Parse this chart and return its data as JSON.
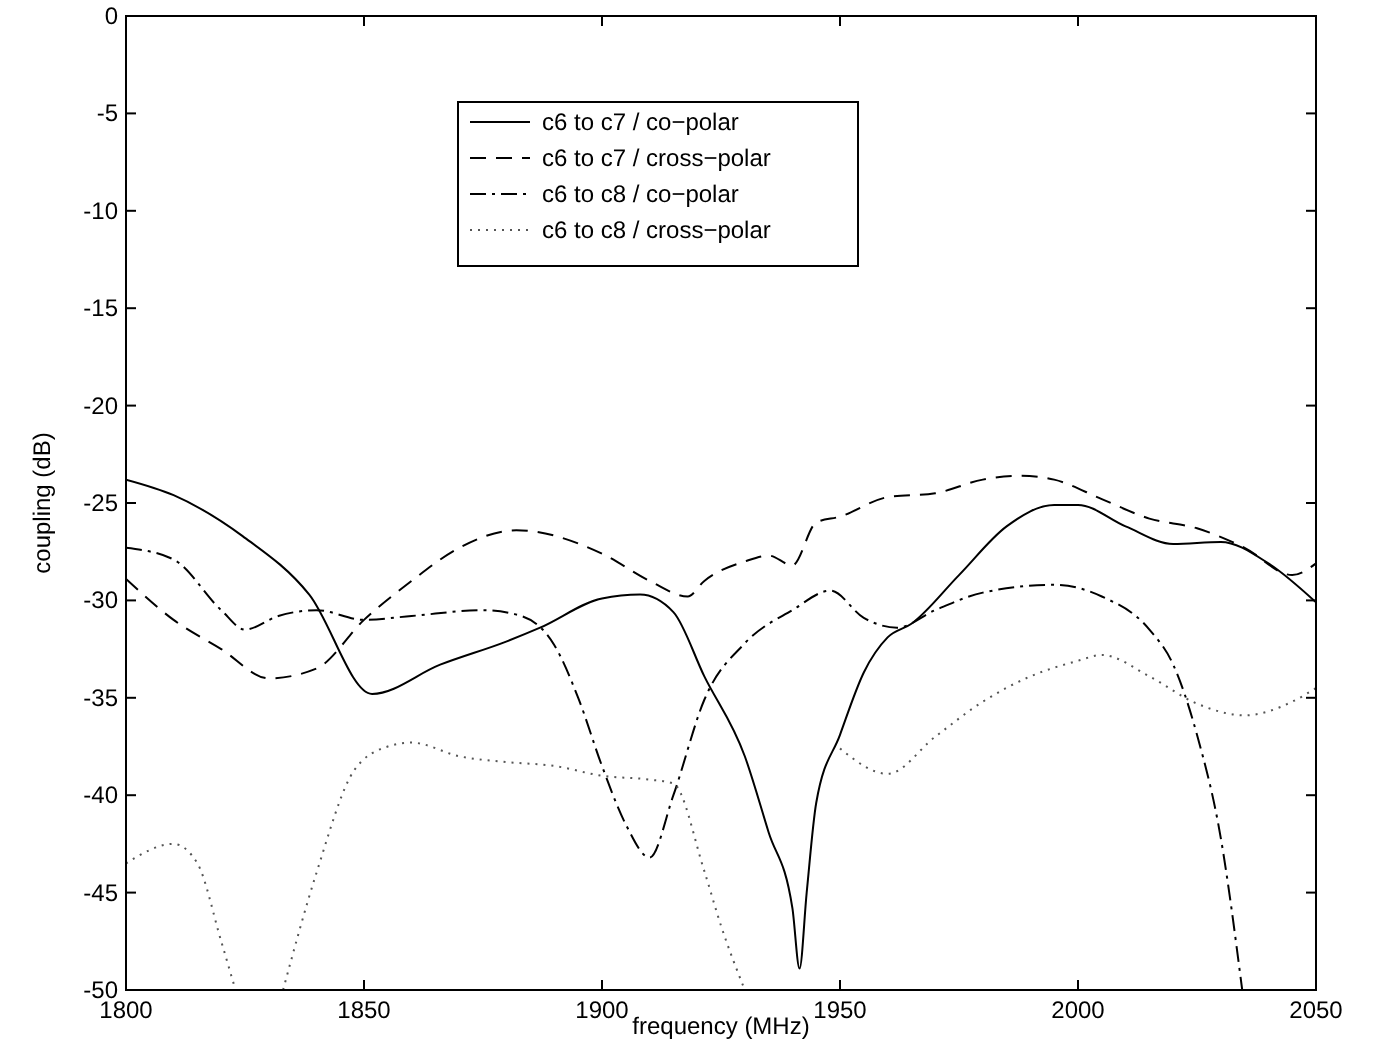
{
  "chart_data": {
    "type": "line",
    "xlabel": "frequency (MHz)",
    "ylabel": "coupling (dB)",
    "xlim": [
      1800,
      2050
    ],
    "xticks": [
      1800,
      1850,
      1900,
      1950,
      2000,
      2050
    ],
    "ylim": [
      -50,
      0
    ],
    "yticks": [
      -50,
      -45,
      -40,
      -35,
      -30,
      -25,
      -20,
      -15,
      -10,
      -5,
      0
    ],
    "legend": "top",
    "grid": false,
    "series": [
      {
        "name": "c6 to c7 / co−polar",
        "color": "#000000",
        "line_style": "solid",
        "x": [
          1800,
          1810,
          1824.5,
          1838.5,
          1851.7,
          1866,
          1880,
          1887,
          1900,
          1908,
          1915,
          1921.5,
          1930,
          1935,
          1940,
          1941.5,
          1943,
          1945,
          1950,
          1955,
          1960,
          1965,
          1975,
          1985,
          1995,
          2000,
          2010,
          2020,
          2030,
          2040,
          2050
        ],
        "values": [
          -23.8,
          -24.6,
          -26.7,
          -29.7,
          -34.8,
          -33.3,
          -32.1,
          -31.4,
          -29.9,
          -29.7,
          -30.6,
          -33.9,
          -38,
          -41.9,
          -45.8,
          -48.9,
          -45,
          -40.4,
          -36.9,
          -33.7,
          -31.9,
          -31.2,
          -28.7,
          -26.2,
          -25.1,
          -25.1,
          -26.2,
          -27.1,
          -27,
          -28.1,
          -30.1
        ]
      },
      {
        "name": "c6 to c7 / cross−polar",
        "color": "#000000",
        "line_style": "dashed",
        "x": [
          1800,
          1810,
          1820,
          1830,
          1840,
          1850,
          1860,
          1870,
          1882,
          1900,
          1910,
          1918,
          1921.5,
          1930,
          1935,
          1940,
          1945,
          1950,
          1960,
          1970,
          1980,
          1988,
          1995,
          2005,
          2015,
          2025,
          2035,
          2045,
          2050
        ],
        "values": [
          -28.9,
          -31,
          -32.5,
          -34,
          -33.5,
          -31,
          -29,
          -27.3,
          -26.4,
          -27.6,
          -29,
          -29.8,
          -29,
          -28,
          -27.7,
          -28.2,
          -26,
          -25.7,
          -24.7,
          -24.5,
          -23.8,
          -23.6,
          -23.8,
          -24.8,
          -25.8,
          -26.3,
          -27.3,
          -28.7,
          -28.1
        ]
      },
      {
        "name": "c6 to c8 / co−polar",
        "color": "#000000",
        "line_style": "dashdot",
        "x": [
          1800,
          1810,
          1820,
          1825,
          1832,
          1840,
          1850,
          1860,
          1875,
          1883,
          1890,
          1895,
          1900,
          1905,
          1910,
          1915,
          1921.5,
          1930,
          1940,
          1948,
          1955,
          1962,
          1970,
          1980,
          1995,
          2005,
          2015,
          2020,
          2025,
          2030,
          2034.5
        ],
        "values": [
          -27.3,
          -27.9,
          -30.5,
          -31.5,
          -30.8,
          -30.5,
          -31,
          -30.8,
          -30.5,
          -30.8,
          -32.3,
          -35,
          -38.5,
          -41.5,
          -43.2,
          -40,
          -35.1,
          -32.2,
          -30.5,
          -29.5,
          -30.9,
          -31.4,
          -30.5,
          -29.6,
          -29.2,
          -29.8,
          -31.5,
          -33.3,
          -36.9,
          -42.2,
          -50
        ]
      },
      {
        "name": "c6 to c8 / cross−polar",
        "color": "#555555",
        "line_style": "dotted",
        "x": [
          1800,
          1810,
          1815,
          1820,
          1823,
          1828,
          1833,
          1840,
          1848,
          1855,
          1860,
          1870,
          1880,
          1890,
          1900,
          1910,
          1915,
          1921.5,
          1925,
          1930,
          1940,
          1950,
          1960,
          1970,
          1980,
          1990,
          2000,
          2005,
          2015,
          2025,
          2035,
          2045,
          2050
        ],
        "values": [
          -43.5,
          -42.5,
          -43.5,
          -47.5,
          -50,
          null,
          -50,
          -44,
          -38.7,
          -37.5,
          -37.3,
          -38,
          -38.3,
          -38.5,
          -39,
          -39.2,
          -39.4,
          -43.9,
          -46.7,
          -50,
          null,
          -37.6,
          -38.9,
          -37,
          -35.2,
          -33.9,
          -33.1,
          -32.8,
          -33.9,
          -35.3,
          -35.9,
          -35.2,
          -34.5
        ]
      }
    ]
  }
}
